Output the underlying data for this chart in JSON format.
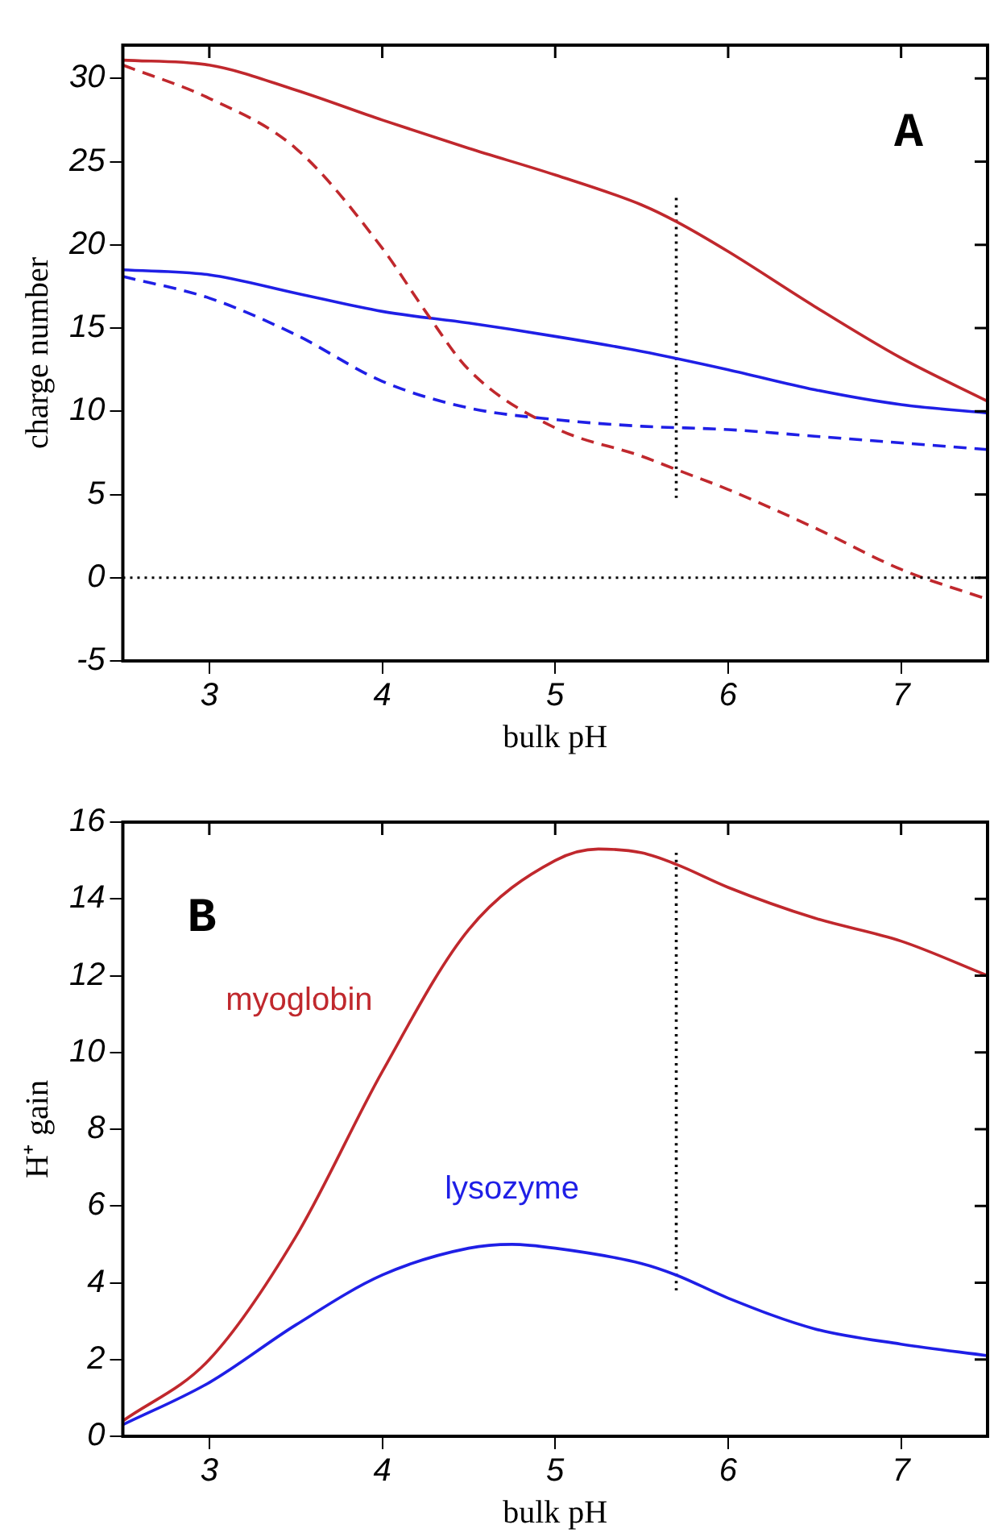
{
  "chart_data": [
    {
      "type": "line",
      "title": "A",
      "xlabel": "bulk pH",
      "ylabel": "charge number",
      "xlim": [
        2.5,
        7.5
      ],
      "xticks": [
        3,
        4,
        5,
        6,
        7
      ],
      "ylim": [
        -5,
        32
      ],
      "yticks": [
        -5,
        0,
        5,
        10,
        15,
        20,
        25,
        30
      ],
      "grid": false,
      "legend": false,
      "marker": "none",
      "ref_lines": [
        {
          "axis": "y",
          "value": 0,
          "line_style": "dotted",
          "color": "#000000"
        }
      ],
      "series": [
        {
          "color": "#c0282d",
          "line_style": "solid",
          "x": [
            2.5,
            3,
            3.5,
            4,
            4.5,
            5,
            5.5,
            5.7,
            6,
            6.5,
            7,
            7.5
          ],
          "values": [
            31.1,
            30.8,
            29.3,
            27.5,
            25.8,
            24.2,
            22.4,
            21.4,
            19.6,
            16.3,
            13.2,
            10.6
          ]
        },
        {
          "color": "#c0282d",
          "line_style": "dashed",
          "x": [
            2.5,
            3,
            3.5,
            4,
            4.25,
            4.5,
            5,
            5.5,
            5.7,
            6,
            6.5,
            7,
            7.5
          ],
          "values": [
            30.8,
            28.8,
            25.8,
            19.8,
            16,
            12.5,
            9,
            7.3,
            6.5,
            5.3,
            3,
            0.5,
            -1.3
          ]
        },
        {
          "color": "#1f1fe6",
          "line_style": "solid",
          "x": [
            2.5,
            3,
            3.5,
            4,
            4.5,
            5,
            5.5,
            6,
            6.5,
            7,
            7.5
          ],
          "values": [
            18.5,
            18.2,
            17.1,
            16,
            15.3,
            14.5,
            13.6,
            12.5,
            11.3,
            10.4,
            9.9
          ]
        },
        {
          "color": "#1f1fe6",
          "line_style": "dashed",
          "x": [
            2.5,
            3,
            3.5,
            4,
            4.5,
            5,
            5.5,
            6,
            6.5,
            7,
            7.5
          ],
          "values": [
            18.1,
            16.8,
            14.6,
            11.8,
            10.2,
            9.5,
            9.1,
            8.9,
            8.5,
            8.1,
            7.7
          ]
        },
        {
          "color": "#000000",
          "line_style": "dotted",
          "x": [
            5.7,
            5.7
          ],
          "values": [
            4.8,
            23
          ]
        }
      ]
    },
    {
      "type": "line",
      "title": "B",
      "xlabel": "bulk pH",
      "ylabel": "H⁺ gain",
      "xlim": [
        2.5,
        7.5
      ],
      "xticks": [
        3,
        4,
        5,
        6,
        7
      ],
      "ylim": [
        0,
        16
      ],
      "yticks": [
        0,
        2,
        4,
        6,
        8,
        10,
        12,
        14,
        16
      ],
      "grid": false,
      "legend": false,
      "marker": "none",
      "series": [
        {
          "name": "myoglobin",
          "color": "#c0282d",
          "line_style": "solid",
          "x": [
            2.5,
            3,
            3.5,
            4,
            4.5,
            5,
            5.25,
            5.5,
            5.7,
            6,
            6.5,
            7,
            7.5
          ],
          "values": [
            0.4,
            2,
            5.2,
            9.5,
            13.2,
            15,
            15.3,
            15.2,
            14.9,
            14.3,
            13.5,
            12.9,
            12
          ]
        },
        {
          "name": "lysozyme",
          "color": "#1f1fe6",
          "line_style": "solid",
          "x": [
            2.5,
            3,
            3.5,
            4,
            4.5,
            4.75,
            5,
            5.5,
            5.7,
            6,
            6.5,
            7,
            7.5
          ],
          "values": [
            0.3,
            1.4,
            2.9,
            4.2,
            4.9,
            5,
            4.9,
            4.5,
            4.2,
            3.6,
            2.8,
            2.4,
            2.1
          ]
        },
        {
          "color": "#000000",
          "line_style": "dotted",
          "x": [
            5.7,
            5.7
          ],
          "values": [
            3.8,
            15.2
          ]
        }
      ]
    }
  ]
}
